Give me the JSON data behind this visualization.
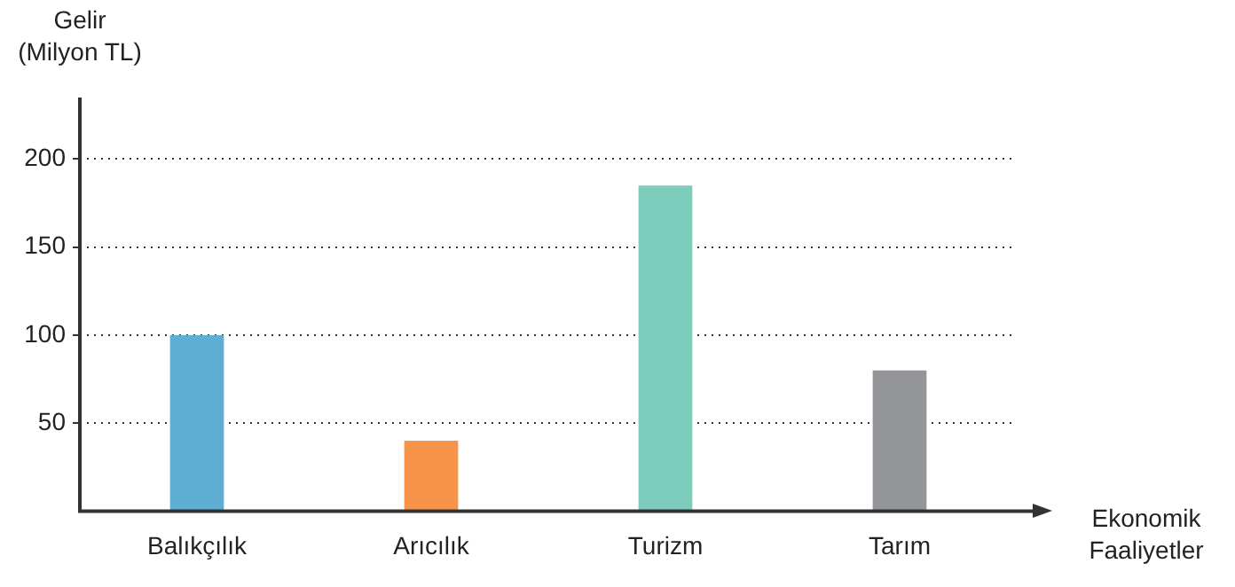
{
  "chart_data": {
    "type": "bar",
    "ylabel": "Gelir\n(Milyon TL)",
    "xlabel": "Ekonomik\nFaaliyetler",
    "categories": [
      "Balıkçılık",
      "Arıcılık",
      "Turizm",
      "Tarım"
    ],
    "values": [
      100,
      40,
      185,
      80
    ],
    "colors": [
      "#5eaed4",
      "#f8944a",
      "#7dcdbd",
      "#939598"
    ],
    "ylim": [
      0,
      235
    ],
    "yticks": [
      50,
      100,
      150,
      200
    ],
    "grid": "y",
    "legend": false
  }
}
